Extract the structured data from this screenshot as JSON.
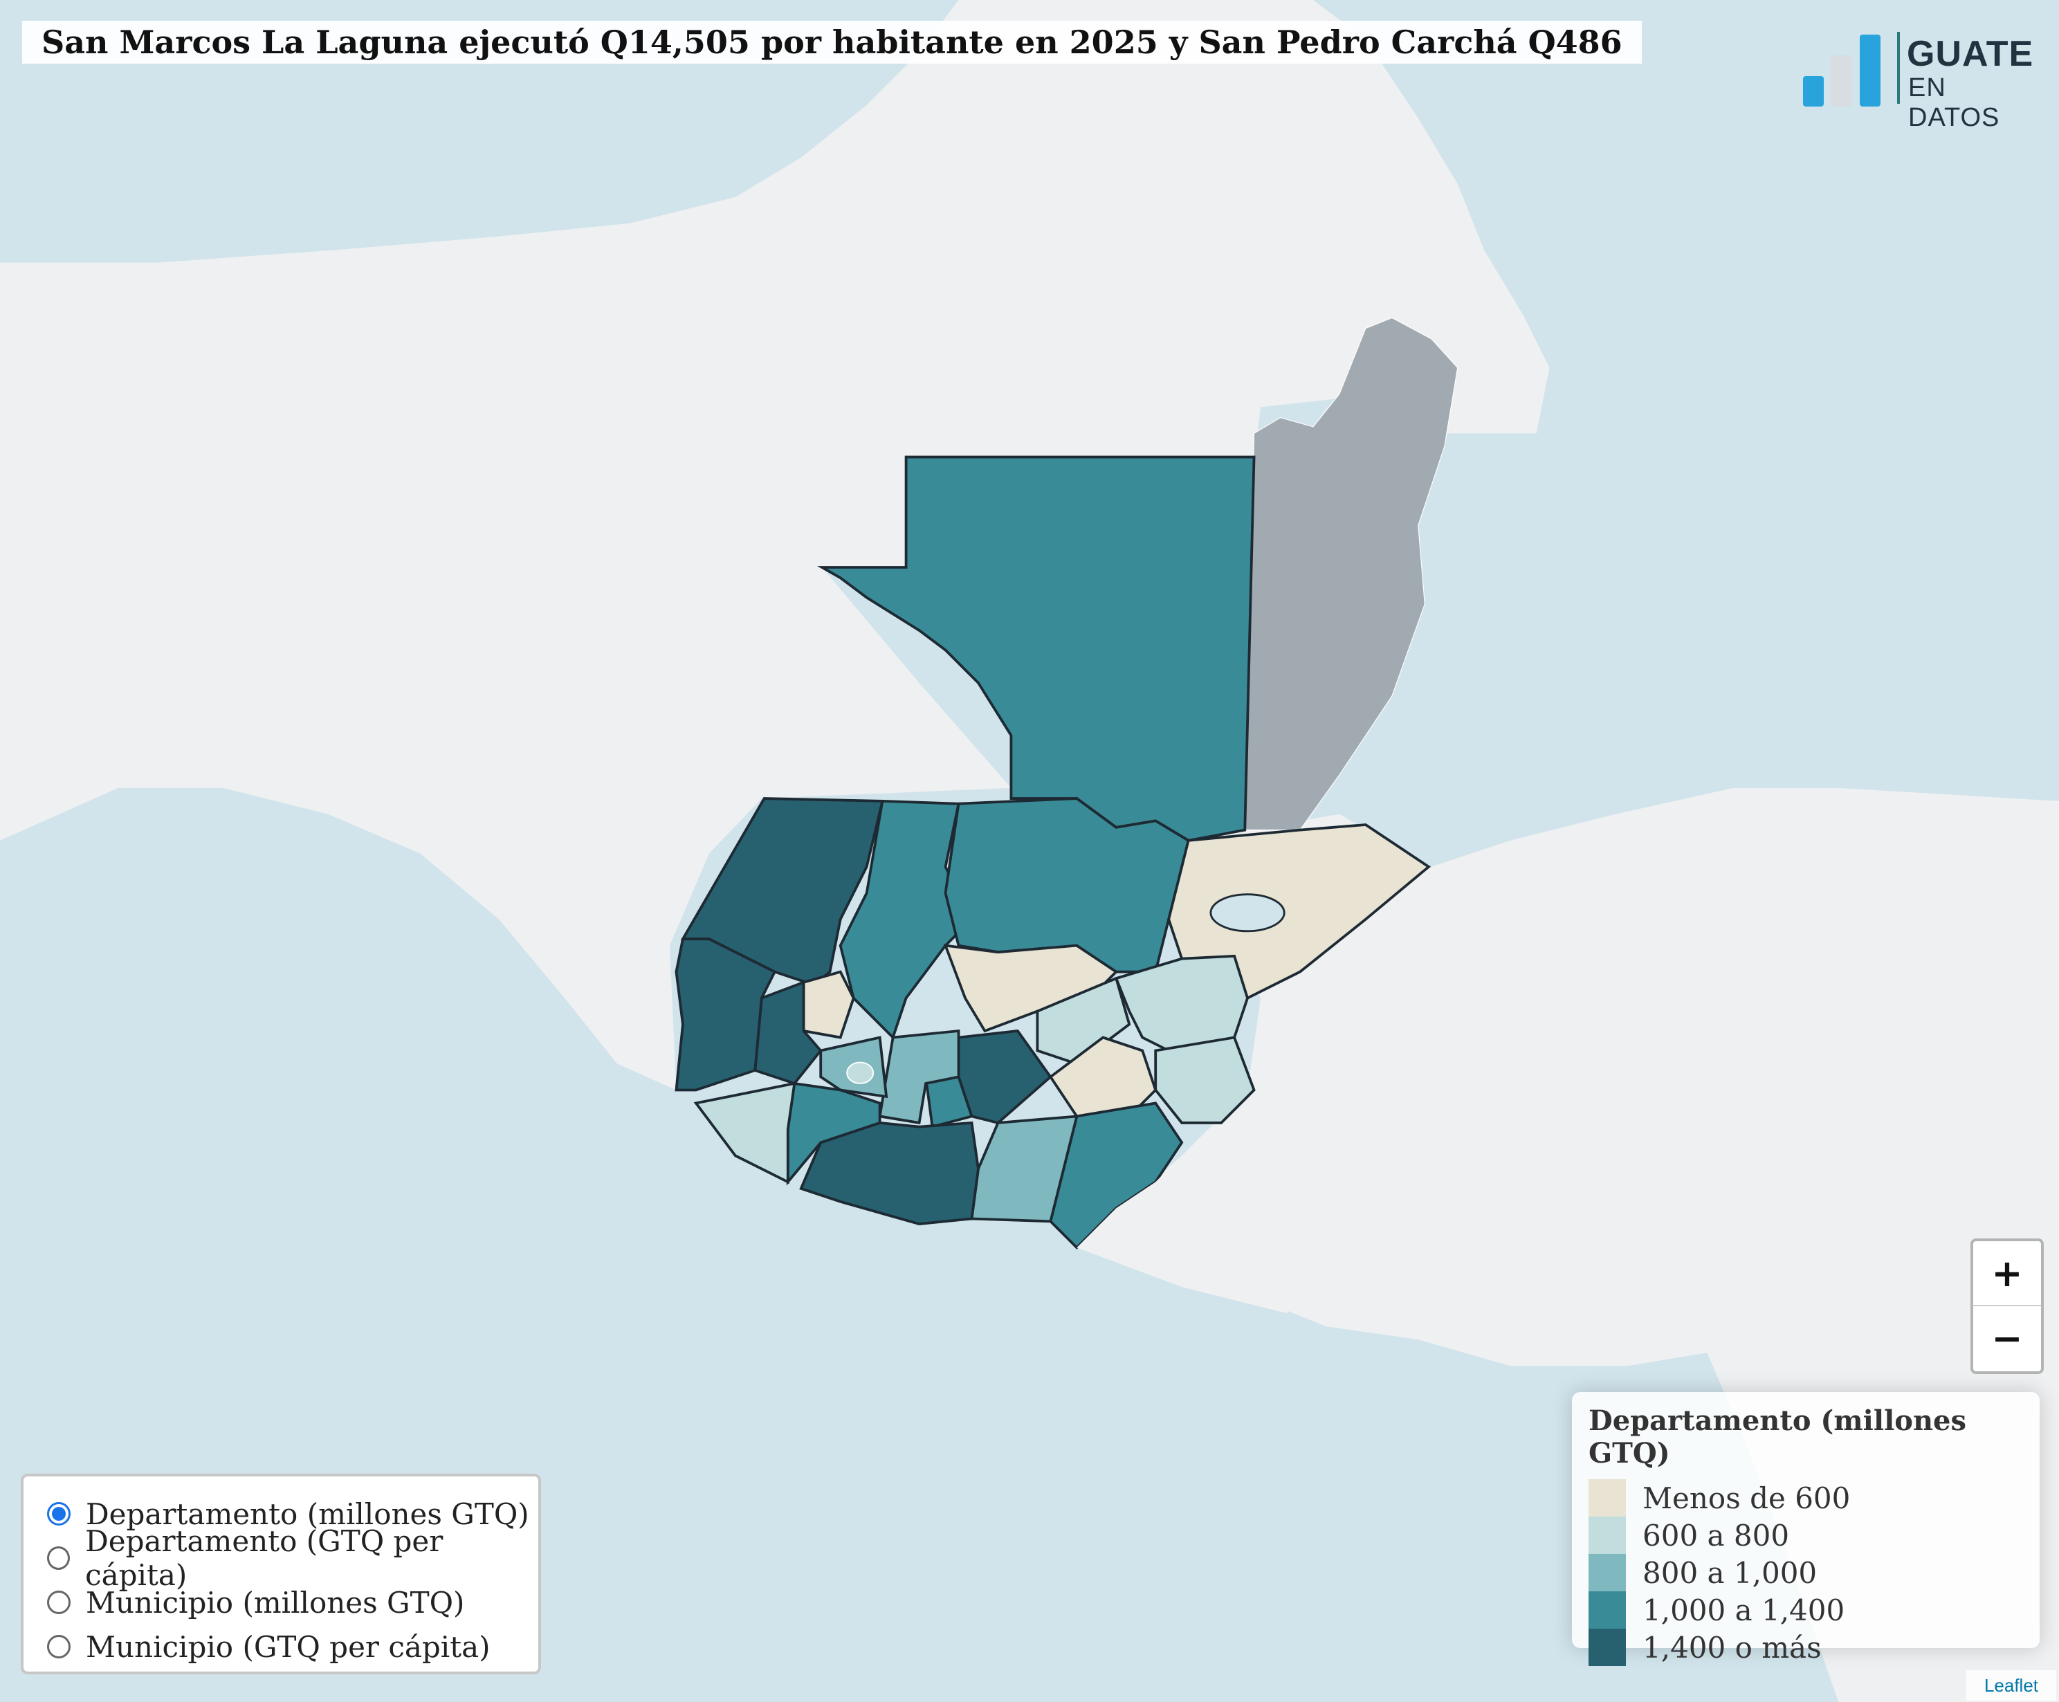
{
  "title": "San Marcos La Laguna ejecutó Q14,505 por habitante en 2025 y San Pedro Carchá Q486",
  "logo": {
    "line1": "GUATE",
    "line2": "EN DATOS"
  },
  "colors": {
    "sea": "#d1e4eb",
    "land": "#eff0f1",
    "belize": "#a2aab1",
    "border": "#1d2a33",
    "class_lt600": "#e8e3d3",
    "class_600_800": "#c2dddd",
    "class_800_1000": "#80b8bf",
    "class_1000_1400": "#3a8b98",
    "class_1400plus": "#27606f",
    "radio_active": "#1a73e8"
  },
  "zoom": {
    "in_label": "+",
    "out_label": "−"
  },
  "layer_control": {
    "options": [
      {
        "label": "Departamento (millones GTQ)",
        "selected": true
      },
      {
        "label": "Departamento (GTQ per cápita)",
        "selected": false
      },
      {
        "label": "Municipio (millones GTQ)",
        "selected": false
      },
      {
        "label": "Municipio (GTQ per cápita)",
        "selected": false
      }
    ]
  },
  "legend": {
    "title": "Departamento (millones GTQ)",
    "items": [
      {
        "label": "Menos de 600",
        "color": "#e8e3d3"
      },
      {
        "label": "600 a 800",
        "color": "#c2dddd"
      },
      {
        "label": "800 a 1,000",
        "color": "#80b8bf"
      },
      {
        "label": "1,000 a 1,400",
        "color": "#3a8b98"
      },
      {
        "label": "1,400 o más",
        "color": "#27606f"
      }
    ]
  },
  "attribution": "Leaflet"
}
